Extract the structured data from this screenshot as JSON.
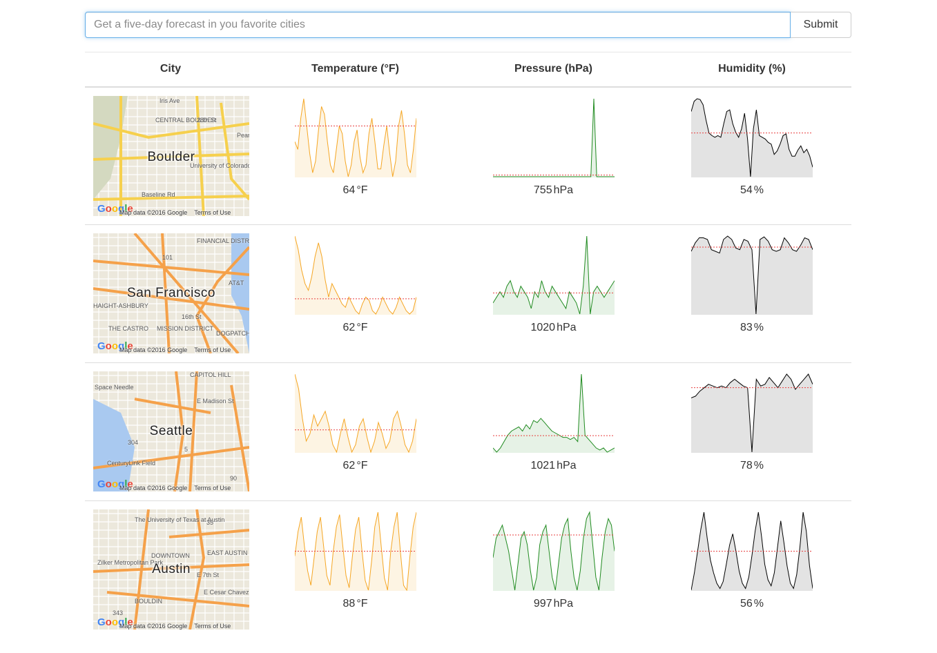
{
  "search": {
    "placeholder": "Get a five-day forecast in you favorite cities",
    "submit_label": "Submit"
  },
  "table": {
    "headers": [
      "City",
      "Temperature (°F)",
      "Pressure (hPa)",
      "Humidity (%)"
    ]
  },
  "map": {
    "attribution": "Map data ©2016 Google",
    "terms": "Terms of Use",
    "logo": "Google"
  },
  "colors": {
    "temperature_line": "#f5a623",
    "temperature_fill": "#fdf4e3",
    "pressure_line": "#1f8a1f",
    "pressure_fill": "#e6f2e6",
    "humidity_line": "#000000",
    "humidity_fill": "#e3e3e3",
    "average_line": "#e83e3e"
  },
  "rows": [
    {
      "city": "Boulder",
      "map_labels": [
        "Iris Ave",
        "CENTRAL BOULDER",
        "28th St",
        "University of Colorado Boulder",
        "Baseline Rd",
        "Pearl"
      ],
      "temperature": {
        "value": "64",
        "unit": "°F",
        "series": [
          60,
          58,
          66,
          71,
          64,
          57,
          52,
          55,
          63,
          69,
          67,
          60,
          54,
          52,
          58,
          64,
          62,
          55,
          51,
          54,
          60,
          63,
          56,
          52,
          54,
          62,
          66,
          60,
          53,
          53,
          59,
          64,
          57,
          51,
          55,
          64,
          68,
          62,
          54,
          52,
          58,
          66
        ],
        "avg": 64
      },
      "pressure": {
        "value": "755",
        "unit": "hPa",
        "series": [
          1,
          1,
          1,
          1,
          1,
          1,
          1,
          1,
          1,
          1,
          1,
          1,
          1,
          1,
          1,
          1,
          1,
          1,
          1,
          1,
          1,
          1,
          1,
          1,
          1,
          1,
          1,
          1,
          1,
          1,
          1,
          1,
          1,
          1,
          40,
          1,
          1,
          1,
          1,
          1,
          1,
          1
        ],
        "avg": 1.8
      },
      "humidity": {
        "value": "54",
        "unit": "%",
        "series": [
          80,
          92,
          95,
          94,
          88,
          70,
          55,
          52,
          50,
          52,
          50,
          66,
          80,
          82,
          66,
          56,
          50,
          60,
          78,
          48,
          4,
          60,
          82,
          52,
          50,
          48,
          44,
          42,
          30,
          34,
          42,
          52,
          54,
          36,
          28,
          28,
          35,
          40,
          32,
          36,
          28,
          15
        ],
        "avg": 55
      }
    },
    {
      "city": "San Francisco",
      "map_labels": [
        "FINANCIAL DISTRICT",
        "101",
        "HAIGHT-ASHBURY",
        "16th St",
        "THE CASTRO",
        "MISSION DISTRICT",
        "DOGPATCH",
        "AT&T"
      ],
      "temperature": {
        "value": "62",
        "unit": "°F",
        "series": [
          76,
          72,
          66,
          62,
          60,
          64,
          70,
          74,
          70,
          63,
          58,
          62,
          60,
          58,
          56,
          55,
          58,
          56,
          54,
          53,
          56,
          58,
          57,
          54,
          53,
          55,
          58,
          56,
          54,
          53,
          55,
          58,
          56,
          54,
          53,
          54,
          58
        ],
        "avg": 57.5
      },
      "pressure": {
        "value": "1020",
        "unit": "hPa",
        "series": [
          1018,
          1019,
          1020,
          1019,
          1021,
          1022,
          1020,
          1019,
          1021,
          1020,
          1019,
          1017,
          1020,
          1019,
          1022,
          1020,
          1019,
          1021,
          1020,
          1019,
          1018,
          1017,
          1020,
          1019,
          1018,
          1016,
          1021,
          1030,
          1016,
          1020,
          1021,
          1020,
          1019,
          1020,
          1021,
          1022
        ],
        "avg": 1019.8
      },
      "humidity": {
        "value": "83",
        "unit": "%",
        "series": [
          78,
          88,
          94,
          94,
          92,
          80,
          78,
          76,
          92,
          96,
          92,
          82,
          80,
          92,
          90,
          80,
          4,
          92,
          95,
          90,
          80,
          78,
          80,
          94,
          88,
          80,
          78,
          85,
          94,
          92,
          80
        ],
        "avg": 83
      }
    },
    {
      "city": "Seattle",
      "map_labels": [
        "Space Needle",
        "CAPITOL HILL",
        "E Madison St",
        "304",
        "5",
        "CenturyLink Field",
        "90"
      ],
      "temperature": {
        "value": "62",
        "unit": "°F",
        "series": [
          74,
          70,
          62,
          56,
          58,
          63,
          60,
          62,
          64,
          60,
          55,
          53,
          58,
          62,
          57,
          53,
          55,
          60,
          62,
          57,
          53,
          56,
          61,
          58,
          54,
          56,
          62,
          64,
          60,
          55,
          53,
          56,
          62
        ],
        "avg": 59
      },
      "pressure": {
        "value": "1021",
        "unit": "hPa",
        "series": [
          1010,
          1008,
          1010,
          1013,
          1016,
          1018,
          1019,
          1020,
          1018,
          1021,
          1019,
          1023,
          1022,
          1024,
          1022,
          1020,
          1018,
          1017,
          1016,
          1015,
          1015,
          1014,
          1015,
          1013,
          1045,
          1016,
          1014,
          1012,
          1010,
          1009,
          1010,
          1008,
          1009,
          1010
        ],
        "avg": 1015.8
      },
      "humidity": {
        "value": "78",
        "unit": "%",
        "series": [
          68,
          70,
          76,
          80,
          84,
          82,
          80,
          82,
          80,
          86,
          90,
          86,
          82,
          80,
          4,
          90,
          82,
          84,
          92,
          86,
          80,
          88,
          96,
          90,
          78,
          84,
          90,
          96,
          84
        ],
        "avg": 80
      }
    },
    {
      "city": "Austin",
      "map_labels": [
        "The University of Texas at Austin",
        "35",
        "DOWNTOWN",
        "EAST AUSTIN",
        "E 7th St",
        "Zilker Metropolitan Park",
        "BOULDIN",
        "E Cesar Chavez St",
        "343"
      ],
      "temperature": {
        "value": "88",
        "unit": "°F",
        "series": [
          86,
          96,
          102,
          90,
          80,
          74,
          85,
          96,
          102,
          90,
          78,
          74,
          88,
          98,
          103,
          90,
          78,
          73,
          86,
          97,
          102,
          88,
          76,
          72,
          84,
          98,
          104,
          90,
          77,
          72,
          88,
          98,
          104,
          88,
          74,
          72,
          86,
          98,
          104
        ],
        "avg": 88
      },
      "pressure": {
        "value": "997",
        "unit": "hPa",
        "series": [
          995,
          998,
          999,
          1000,
          998,
          996,
          993,
          990,
          994,
          998,
          999,
          997,
          993,
          990,
          992,
          997,
          999,
          1000,
          996,
          992,
          990,
          994,
          998,
          1000,
          1001,
          996,
          992,
          990,
          993,
          998,
          1001,
          1002,
          997,
          992,
          990,
          995,
          999,
          1001,
          1000,
          996
        ],
        "avg": 998.5
      },
      "humidity": {
        "value": "56",
        "unit": "%",
        "series": [
          10,
          30,
          55,
          80,
          100,
          70,
          45,
          30,
          18,
          12,
          20,
          40,
          62,
          75,
          55,
          32,
          18,
          12,
          25,
          50,
          78,
          100,
          72,
          40,
          22,
          15,
          30,
          60,
          90,
          65,
          38,
          18,
          12,
          28,
          60,
          100,
          78,
          38,
          12
        ],
        "avg": 55
      }
    }
  ]
}
